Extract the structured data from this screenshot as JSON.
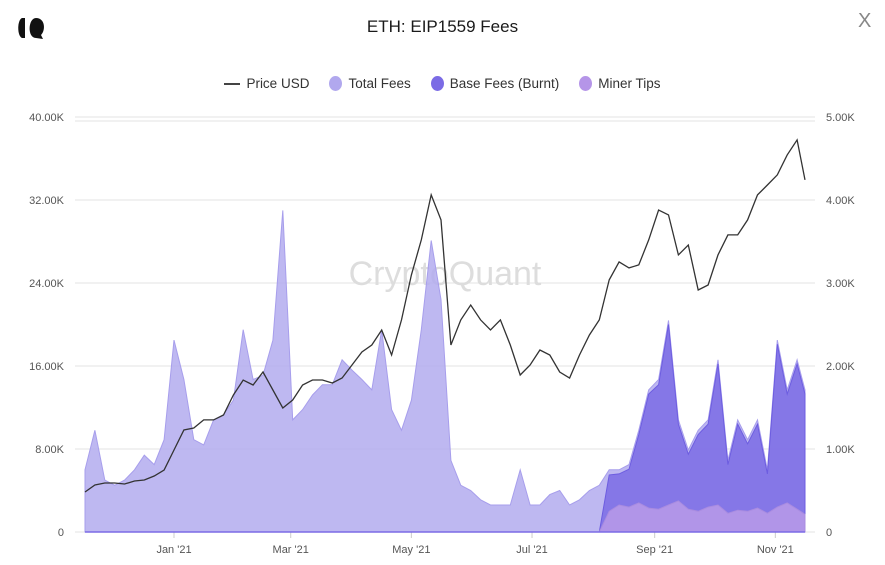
{
  "header": {
    "title": "ETH: EIP1559 Fees",
    "close_label": "X"
  },
  "watermark": "CryptoQuant",
  "colors": {
    "price": "#333333",
    "total": "#b3abee",
    "base": "#7b6be5",
    "tips": "#b89ae8",
    "grid": "#e3e3e3"
  },
  "chart_data": {
    "type": "area",
    "title": "ETH: EIP1559 Fees",
    "legend": {
      "placement": "top",
      "items": [
        "Price USD",
        "Total Fees",
        "Base Fees (Burnt)",
        "Miner Tips"
      ]
    },
    "grid": true,
    "xlim": [
      "2020-11-17",
      "2021-11-16"
    ],
    "x_ticks": [
      {
        "date": "2021-01-01",
        "label": "Jan '21"
      },
      {
        "date": "2021-03-01",
        "label": "Mar '21"
      },
      {
        "date": "2021-05-01",
        "label": "May '21"
      },
      {
        "date": "2021-07-01",
        "label": "Jul '21"
      },
      {
        "date": "2021-09-01",
        "label": "Sep '21"
      },
      {
        "date": "2021-11-01",
        "label": "Nov '21"
      }
    ],
    "y_left": {
      "range": [
        0,
        40000
      ],
      "ticks": [
        "0",
        "8.00K",
        "16.00K",
        "24.00K",
        "32.00K",
        "40.00K"
      ]
    },
    "y_right": {
      "range": [
        0,
        5000
      ],
      "ticks": [
        "0",
        "1.00K",
        "2.00K",
        "3.00K",
        "4.00K",
        "5.00K"
      ]
    },
    "x": [
      "2020-11-17",
      "2020-11-22",
      "2020-11-27",
      "2020-12-02",
      "2020-12-07",
      "2020-12-12",
      "2020-12-17",
      "2020-12-22",
      "2020-12-27",
      "2021-01-01",
      "2021-01-06",
      "2021-01-11",
      "2021-01-16",
      "2021-01-21",
      "2021-01-26",
      "2021-01-31",
      "2021-02-05",
      "2021-02-10",
      "2021-02-15",
      "2021-02-20",
      "2021-02-25",
      "2021-03-02",
      "2021-03-07",
      "2021-03-12",
      "2021-03-17",
      "2021-03-22",
      "2021-03-27",
      "2021-04-01",
      "2021-04-06",
      "2021-04-11",
      "2021-04-16",
      "2021-04-21",
      "2021-04-26",
      "2021-05-01",
      "2021-05-06",
      "2021-05-11",
      "2021-05-16",
      "2021-05-21",
      "2021-05-26",
      "2021-05-31",
      "2021-06-05",
      "2021-06-10",
      "2021-06-15",
      "2021-06-20",
      "2021-06-25",
      "2021-06-30",
      "2021-07-05",
      "2021-07-10",
      "2021-07-15",
      "2021-07-20",
      "2021-07-25",
      "2021-07-30",
      "2021-08-04",
      "2021-08-09",
      "2021-08-14",
      "2021-08-19",
      "2021-08-24",
      "2021-08-29",
      "2021-09-03",
      "2021-09-08",
      "2021-09-13",
      "2021-09-18",
      "2021-09-23",
      "2021-09-28",
      "2021-10-03",
      "2021-10-08",
      "2021-10-13",
      "2021-10-18",
      "2021-10-23",
      "2021-10-28",
      "2021-11-02",
      "2021-11-07",
      "2021-11-12",
      "2021-11-16"
    ],
    "series": [
      {
        "name": "Price USD",
        "axis": "right",
        "type": "line",
        "values": [
          482,
          566,
          590,
          590,
          578,
          615,
          627,
          675,
          747,
          988,
          1229,
          1253,
          1350,
          1350,
          1410,
          1650,
          1830,
          1771,
          1928,
          1711,
          1494,
          1590,
          1771,
          1831,
          1831,
          1795,
          1855,
          2012,
          2169,
          2253,
          2434,
          2133,
          2555,
          3097,
          3519,
          4061,
          3760,
          2253,
          2555,
          2735,
          2555,
          2434,
          2555,
          2253,
          1892,
          2012,
          2193,
          2133,
          1928,
          1855,
          2133,
          2374,
          2555,
          3037,
          3254,
          3182,
          3218,
          3519,
          3880,
          3820,
          3338,
          3458,
          2916,
          2976,
          3338,
          3579,
          3579,
          3760,
          4061,
          4181,
          4302,
          4543,
          4724,
          4242
        ]
      },
      {
        "name": "Total Fees",
        "axis": "left",
        "type": "area",
        "values": [
          6000,
          9800,
          5000,
          4500,
          5000,
          6000,
          7400,
          6500,
          8900,
          18500,
          14700,
          8900,
          8400,
          10800,
          11300,
          12700,
          19500,
          14700,
          15100,
          18500,
          31000,
          10800,
          11800,
          13200,
          14200,
          14200,
          16600,
          15600,
          14700,
          13700,
          19500,
          11800,
          9800,
          12700,
          19500,
          28100,
          22400,
          6900,
          4500,
          4000,
          3100,
          2600,
          2600,
          2600,
          6000,
          2600,
          2600,
          3600,
          4000,
          2600,
          3100,
          4000,
          4500,
          6000,
          6000,
          6500,
          9800,
          13700,
          14700,
          20400,
          10800,
          7900,
          9800,
          10800,
          16600,
          6900,
          10800,
          8900,
          10800,
          6000,
          18500,
          13700,
          16600,
          13700
        ]
      },
      {
        "name": "Base Fees (Burnt)",
        "axis": "left",
        "type": "area",
        "values": [
          0,
          0,
          0,
          0,
          0,
          0,
          0,
          0,
          0,
          0,
          0,
          0,
          0,
          0,
          0,
          0,
          0,
          0,
          0,
          0,
          0,
          0,
          0,
          0,
          0,
          0,
          0,
          0,
          0,
          0,
          0,
          0,
          0,
          0,
          0,
          0,
          0,
          0,
          0,
          0,
          0,
          0,
          0,
          0,
          0,
          0,
          0,
          0,
          0,
          0,
          0,
          0,
          0,
          3500,
          3000,
          3650,
          6600,
          11000,
          12000,
          17400,
          7400,
          5300,
          7400,
          8000,
          13600,
          4700,
          8300,
          6500,
          8100,
          3800,
          15700,
          10500,
          14000,
          11600
        ]
      },
      {
        "name": "Miner Tips",
        "axis": "left",
        "type": "area",
        "values": [
          0,
          0,
          0,
          0,
          0,
          0,
          0,
          0,
          0,
          0,
          0,
          0,
          0,
          0,
          0,
          0,
          0,
          0,
          0,
          0,
          0,
          0,
          0,
          0,
          0,
          0,
          0,
          0,
          0,
          0,
          0,
          0,
          0,
          0,
          0,
          0,
          0,
          0,
          0,
          0,
          0,
          0,
          0,
          0,
          0,
          0,
          0,
          0,
          0,
          0,
          0,
          0,
          0,
          2000,
          2600,
          2400,
          2800,
          2300,
          2200,
          2600,
          3000,
          2200,
          2000,
          2400,
          2600,
          1800,
          2100,
          2000,
          2300,
          1800,
          2400,
          2800,
          2200,
          1700
        ]
      }
    ]
  }
}
